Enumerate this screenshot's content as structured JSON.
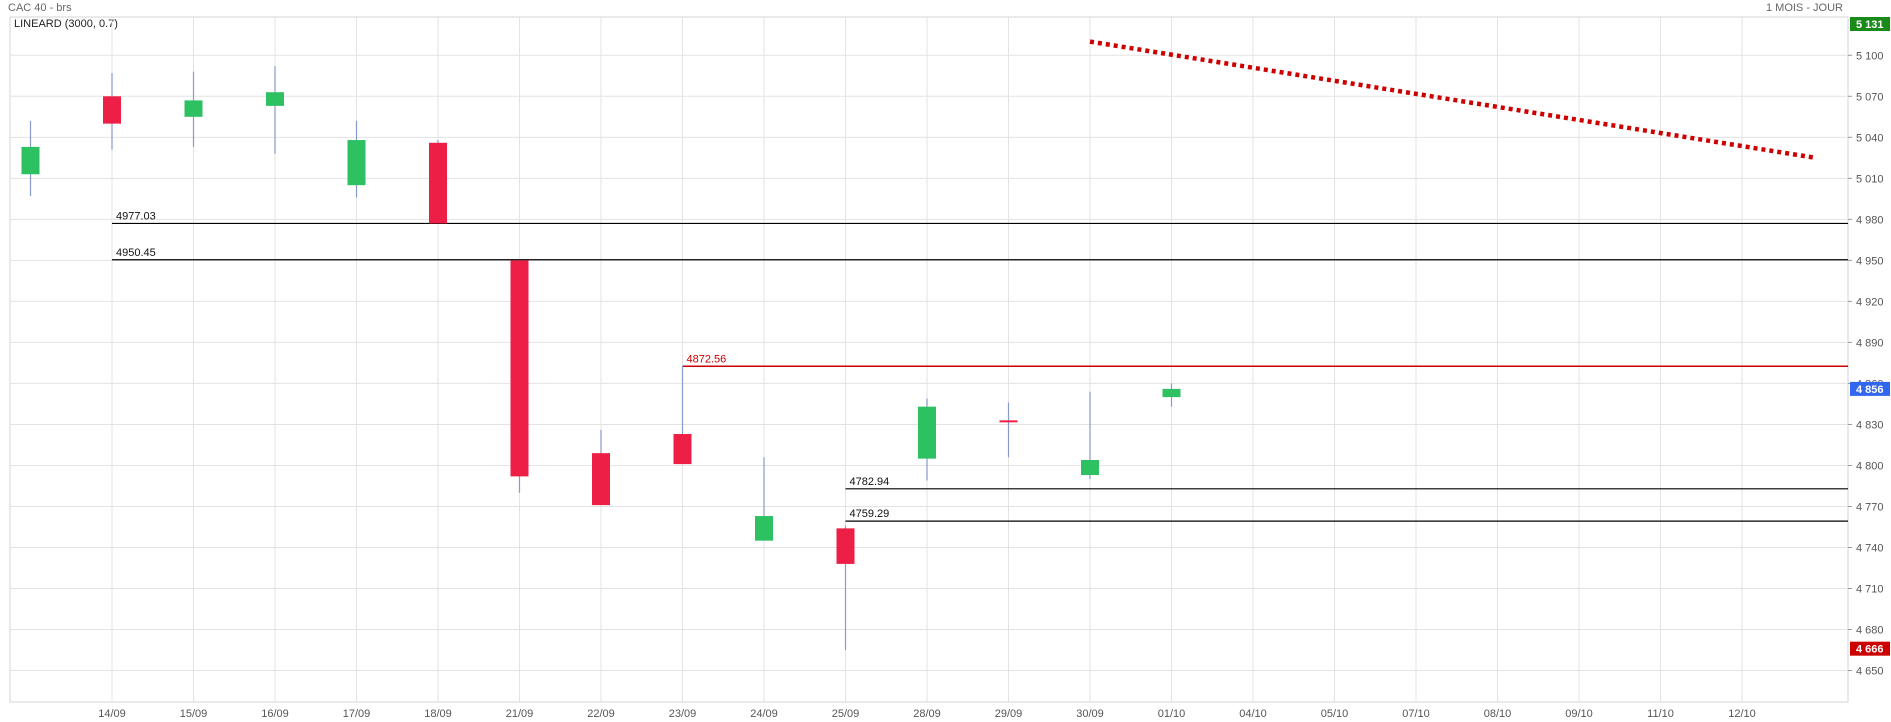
{
  "header": {
    "instrument": "CAC 40 - brs",
    "period": "1 MOIS - JOUR",
    "indicator": "LINEARD (3000, 0.7)"
  },
  "chart_data": {
    "type": "candlestick",
    "x_labels": [
      "14/09",
      "15/09",
      "16/09",
      "17/09",
      "18/09",
      "21/09",
      "22/09",
      "23/09",
      "24/09",
      "25/09",
      "28/09",
      "29/09",
      "30/09",
      "01/10",
      "04/10",
      "05/10",
      "07/10",
      "08/10",
      "09/10",
      "11/10",
      "12/10"
    ],
    "y_ticks": [
      {
        "value": 5100,
        "label": "5 100"
      },
      {
        "value": 5070,
        "label": "5 070"
      },
      {
        "value": 5040,
        "label": "5 040"
      },
      {
        "value": 5010,
        "label": "5 010"
      },
      {
        "value": 4980,
        "label": "4 980"
      },
      {
        "value": 4950,
        "label": "4 950"
      },
      {
        "value": 4920,
        "label": "4 920"
      },
      {
        "value": 4890,
        "label": "4 890"
      },
      {
        "value": 4860,
        "label": "4 860"
      },
      {
        "value": 4830,
        "label": "4 830"
      },
      {
        "value": 4800,
        "label": "4 800"
      },
      {
        "value": 4770,
        "label": "4 770"
      },
      {
        "value": 4740,
        "label": "4 740"
      },
      {
        "value": 4710,
        "label": "4 710"
      },
      {
        "value": 4680,
        "label": "4 680"
      },
      {
        "value": 4650,
        "label": "4 650"
      }
    ],
    "ylim": [
      4627,
      5128
    ],
    "candles": [
      {
        "slot": -1,
        "open": 5013,
        "high": 5052,
        "low": 4997,
        "close": 5033
      },
      {
        "slot": 0,
        "open": 5070,
        "high": 5087,
        "low": 5031,
        "close": 5050
      },
      {
        "slot": 1,
        "open": 5055,
        "high": 5088,
        "low": 5033,
        "close": 5067
      },
      {
        "slot": 2,
        "open": 5063,
        "high": 5092,
        "low": 5028,
        "close": 5073
      },
      {
        "slot": 3,
        "open": 5005,
        "high": 5052,
        "low": 4996,
        "close": 5038
      },
      {
        "slot": 4,
        "open": 5036,
        "high": 5038,
        "low": 4977,
        "close": 4977
      },
      {
        "slot": 5,
        "open": 4950,
        "high": 4950,
        "low": 4780,
        "close": 4792
      },
      {
        "slot": 6,
        "open": 4809,
        "high": 4826,
        "low": 4771,
        "close": 4771
      },
      {
        "slot": 7,
        "open": 4823,
        "high": 4873,
        "low": 4801,
        "close": 4801
      },
      {
        "slot": 8,
        "open": 4745,
        "high": 4806,
        "low": 4745,
        "close": 4763
      },
      {
        "slot": 9,
        "open": 4754,
        "high": 4756,
        "low": 4665,
        "close": 4728
      },
      {
        "slot": 10,
        "open": 4805,
        "high": 4849,
        "low": 4789,
        "close": 4843
      },
      {
        "slot": 11,
        "open": 4833,
        "high": 4846,
        "low": 4806,
        "close": 4832
      },
      {
        "slot": 12,
        "open": 4793,
        "high": 4854,
        "low": 4790,
        "close": 4804
      },
      {
        "slot": 13,
        "open": 4850,
        "high": 4860,
        "low": 4843,
        "close": 4856
      }
    ],
    "horizontal_lines": [
      {
        "value": 4977.03,
        "label": "4977.03",
        "color": "#000000",
        "start_slot": 0
      },
      {
        "value": 4950.45,
        "label": "4950.45",
        "color": "#000000",
        "start_slot": 0
      },
      {
        "value": 4872.56,
        "label": "4872.56",
        "color": "#cc0000",
        "start_slot": 7
      },
      {
        "value": 4782.94,
        "label": "4782.94",
        "color": "#000000",
        "start_slot": 9
      },
      {
        "value": 4759.29,
        "label": "4759.29",
        "color": "#000000",
        "start_slot": 9
      }
    ],
    "trend_line": {
      "color": "#cc0000",
      "style": "dotted",
      "from": {
        "slot": 12,
        "value": 5110
      },
      "to": {
        "slot": 20.9,
        "value": 5025
      }
    },
    "price_markers": [
      {
        "value": 5131,
        "label": "5 131",
        "color": "#1a8a1a"
      },
      {
        "value": 4856,
        "label": "4 856",
        "color": "#3366ee"
      },
      {
        "value": 4666,
        "label": "4 666",
        "color": "#cc0000"
      }
    ],
    "colors": {
      "up": "#2dc162",
      "down": "#ee1f46",
      "grid": "#e3e3e3",
      "wick": "#8899cc"
    },
    "grid": true
  }
}
